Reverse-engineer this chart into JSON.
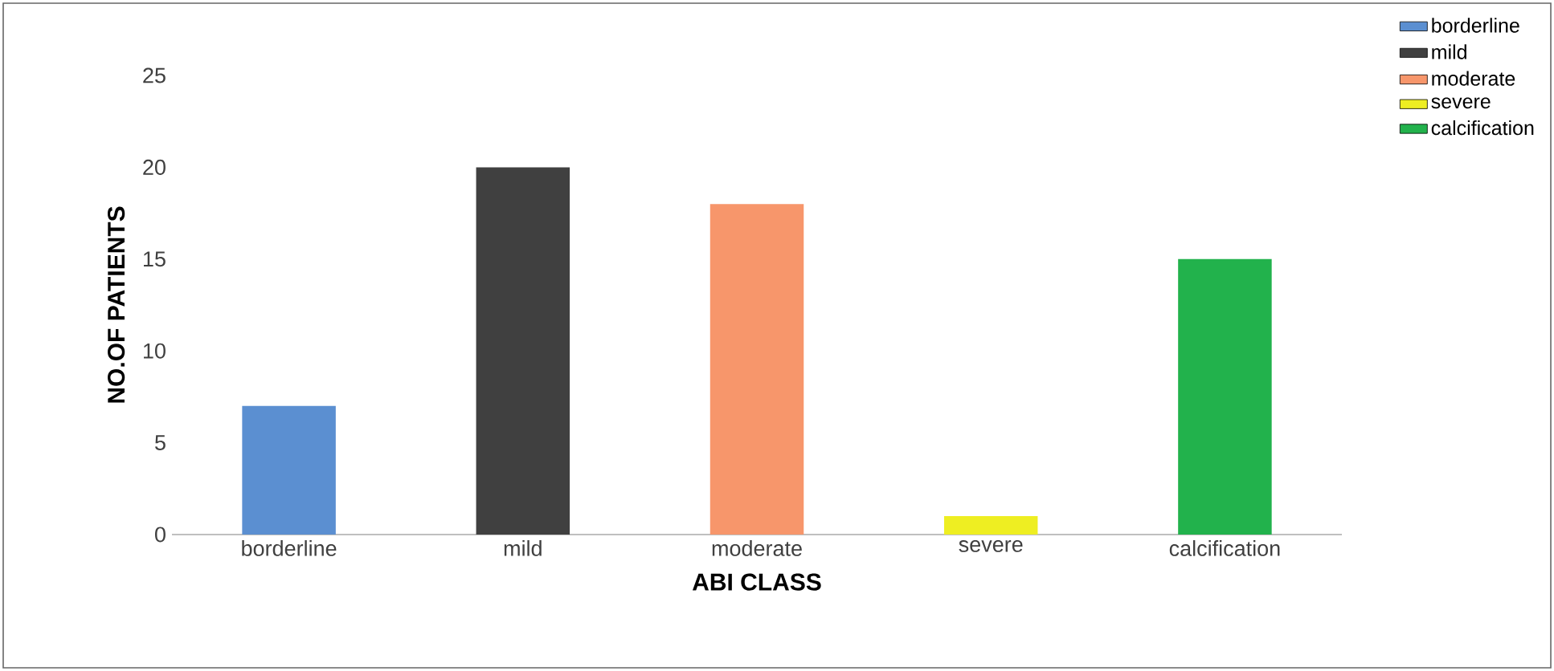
{
  "chart_data": {
    "type": "bar",
    "xlabel": "ABI CLASS",
    "ylabel": "NO.OF PATIENTS",
    "categories": [
      "borderline",
      "mild",
      "moderate",
      "severe",
      "calcification"
    ],
    "series": [
      {
        "name": "borderline",
        "color": "#5b8fd1",
        "values": [
          7,
          null,
          null,
          null,
          null
        ]
      },
      {
        "name": "mild",
        "color": "#404040",
        "values": [
          null,
          20,
          null,
          null,
          null
        ]
      },
      {
        "name": "moderate",
        "color": "#f7966b",
        "values": [
          null,
          null,
          18,
          null,
          null
        ]
      },
      {
        "name": "severe",
        "color": "#eeee22",
        "values": [
          null,
          null,
          null,
          1,
          null
        ]
      },
      {
        "name": "calcification",
        "color": "#22b24c",
        "values": [
          null,
          null,
          null,
          null,
          15
        ]
      }
    ],
    "ylim": [
      0,
      25
    ],
    "yticks": [
      0,
      5,
      10,
      15,
      20,
      25
    ],
    "grid": false,
    "legend": "right"
  }
}
